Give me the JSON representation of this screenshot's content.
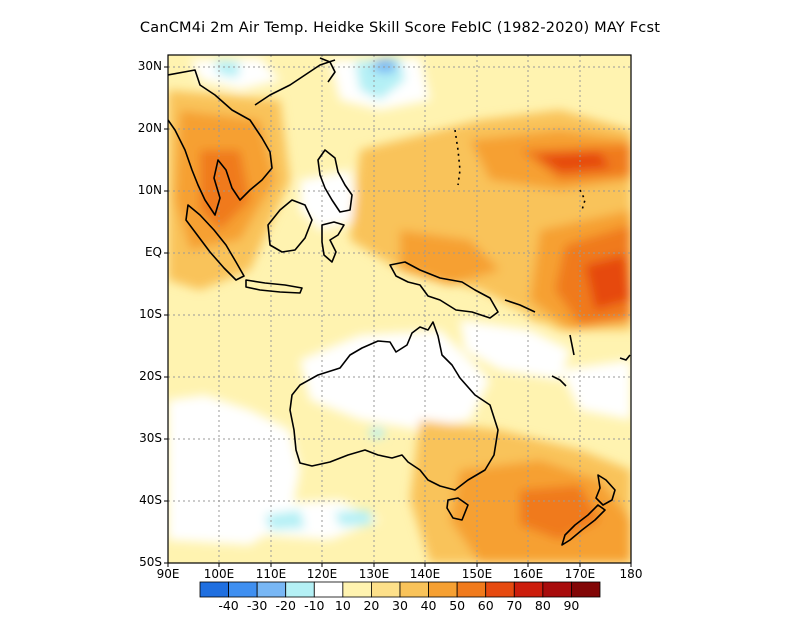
{
  "title": "CanCM4i  2m Air Temp. Heidke Skill Score FebIC (1982-2020) MAY Fcst",
  "latitude_labels": [
    "30N",
    "20N",
    "10N",
    "EQ",
    "10S",
    "20S",
    "30S",
    "40S",
    "50S"
  ],
  "longitude_labels": [
    "90E",
    "100E",
    "110E",
    "120E",
    "130E",
    "140E",
    "150E",
    "160E",
    "170E",
    "180"
  ],
  "colorbar": {
    "labels": [
      "-40",
      "-30",
      "-20",
      "-10",
      "10",
      "20",
      "30",
      "40",
      "50",
      "60",
      "70",
      "80",
      "90"
    ],
    "colors": [
      "#1f6fe0",
      "#3f8ff0",
      "#78b7f5",
      "#b4f0f5",
      "#ffffff",
      "#fff3b0",
      "#fde08a",
      "#f9c35a",
      "#f6a032",
      "#f07a1c",
      "#e64a10",
      "#cc1d0c",
      "#a80c0c",
      "#820606"
    ]
  },
  "map_extent": {
    "lon": [
      90,
      180
    ],
    "lat": [
      -50,
      32
    ]
  },
  "legend_position": "bottom"
}
